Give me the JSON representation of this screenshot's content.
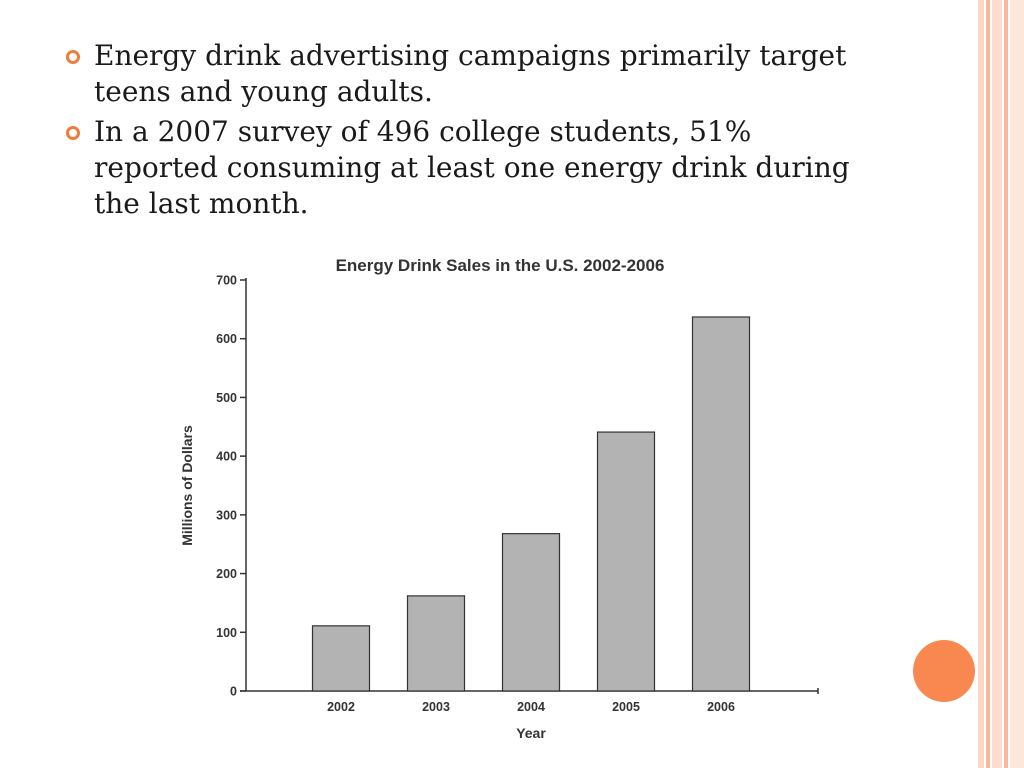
{
  "bullets": [
    {
      "text": "Energy drink advertising campaigns primarily target teens and young adults."
    },
    {
      "text": "In a 2007 survey of 496 college students, 51% reported consuming at least one energy drink during the last month."
    }
  ],
  "theme": {
    "accent": "#f07c3c",
    "circle": "#f98850",
    "bar_fill": "#b3b3b3",
    "bar_stroke": "#333333"
  },
  "chart_data": {
    "type": "bar",
    "title": "Energy Drink Sales in the U.S. 2002-2006",
    "xlabel": "Year",
    "ylabel": "Millions of Dollars",
    "categories": [
      "2002",
      "2003",
      "2004",
      "2005",
      "2006"
    ],
    "values": [
      111,
      162,
      268,
      441,
      637
    ],
    "ylim": [
      0,
      700
    ],
    "yticks": [
      0,
      100,
      200,
      300,
      400,
      500,
      600,
      700
    ],
    "grid": false,
    "legend": "none"
  }
}
